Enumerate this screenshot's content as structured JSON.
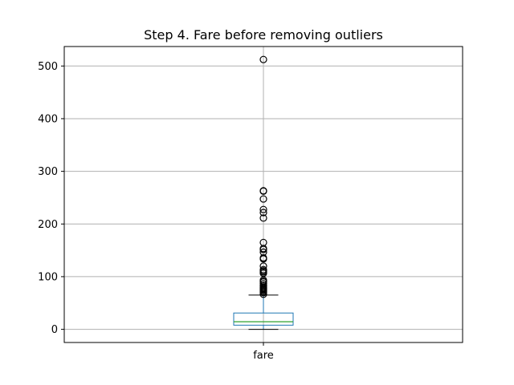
{
  "chart_data": {
    "type": "box",
    "title": "Step 4. Fare before removing outliers",
    "xlabel": "",
    "ylabel": "",
    "categories": [
      "fare"
    ],
    "ylim": [
      -25,
      537
    ],
    "yticks": [
      0,
      100,
      200,
      300,
      400,
      500
    ],
    "ytick_labels": [
      "0",
      "100",
      "200",
      "300",
      "400",
      "500"
    ],
    "grid": true,
    "box": {
      "whisker_low": 0,
      "q1": 7.9,
      "median": 14.45,
      "q3": 31,
      "whisker_high": 65.0
    },
    "outliers": [
      512.33,
      262.38,
      263.0,
      247.52,
      227.53,
      221.78,
      211.34,
      164.87,
      153.46,
      151.55,
      146.52,
      135.63,
      133.65,
      120.0,
      113.28,
      110.88,
      108.9,
      106.43,
      93.5,
      91.08,
      90.0,
      86.5,
      83.16,
      82.17,
      79.2,
      77.96,
      76.73,
      75.25,
      73.5,
      71.28,
      69.55,
      66.6
    ],
    "colors": {
      "box": "#1f77b4",
      "median": "#2ca02c",
      "whisker": "#000000",
      "grid": "#b0b0b0",
      "outlier": "#000000"
    }
  }
}
